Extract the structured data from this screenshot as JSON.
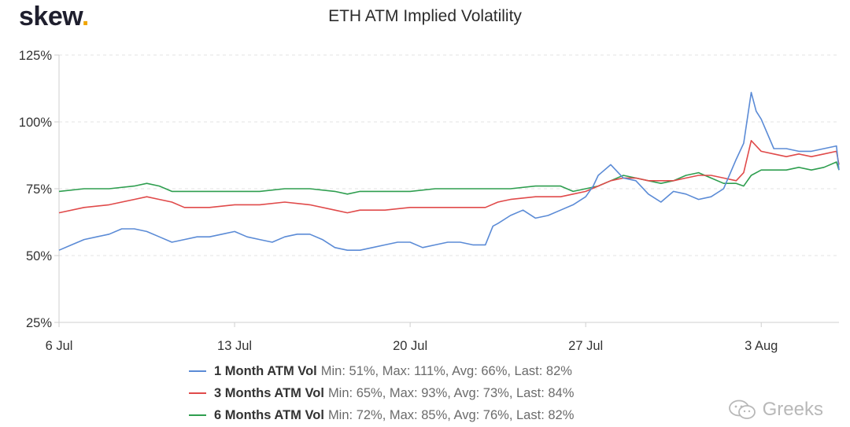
{
  "brand": {
    "name": "skew",
    "dot": "."
  },
  "watermark": {
    "text": "Greeks",
    "icon": "wechat-icon"
  },
  "colors": {
    "series1": "#5b8bd6",
    "series2": "#e04a4a",
    "series3": "#2e9e4f",
    "grid": "#e3e3e3",
    "axis": "#cfcfcf"
  },
  "legend": [
    {
      "name": "1 Month ATM Vol",
      "stats": "Min: 51%, Max: 111%, Avg: 66%, Last: 82%"
    },
    {
      "name": "3 Months ATM Vol",
      "stats": "Min: 65%, Max: 93%, Avg: 73%, Last: 84%"
    },
    {
      "name": "6 Months ATM Vol",
      "stats": "Min: 72%, Max: 85%, Avg: 76%, Last: 82%"
    }
  ],
  "chart_data": {
    "type": "line",
    "title": "ETH ATM Implied Volatility",
    "xlabel": "",
    "ylabel": "",
    "ylim": [
      25,
      125
    ],
    "yticks": [
      "25%",
      "50%",
      "75%",
      "100%",
      "125%"
    ],
    "ytick_values": [
      25,
      50,
      75,
      100,
      125
    ],
    "xlim": [
      0,
      31.1
    ],
    "xticks": [
      "6 Jul",
      "13 Jul",
      "20 Jul",
      "27 Jul",
      "3 Aug"
    ],
    "xtick_values": [
      0,
      7,
      14,
      21,
      28
    ],
    "grid": true,
    "legend_position": "bottom",
    "series": [
      {
        "name": "1 Month ATM Vol",
        "x": [
          0,
          0.5,
          1,
          1.5,
          2,
          2.5,
          3,
          3.5,
          4,
          4.5,
          5,
          5.5,
          6,
          6.5,
          7,
          7.5,
          8,
          8.5,
          9,
          9.5,
          10,
          10.5,
          11,
          11.5,
          12,
          12.5,
          13,
          13.5,
          14,
          14.5,
          15,
          15.5,
          16,
          16.5,
          17,
          17.3,
          17.5,
          18,
          18.5,
          19,
          19.5,
          20,
          20.5,
          21,
          21.3,
          21.5,
          22,
          22.5,
          23,
          23.5,
          24,
          24.5,
          25,
          25.5,
          26,
          26.5,
          27,
          27.3,
          27.6,
          27.8,
          28,
          28.5,
          29,
          29.5,
          30,
          30.5,
          31,
          31.1
        ],
        "y": [
          52,
          54,
          56,
          57,
          58,
          60,
          60,
          59,
          57,
          55,
          56,
          57,
          57,
          58,
          59,
          57,
          56,
          55,
          57,
          58,
          58,
          56,
          53,
          52,
          52,
          53,
          54,
          55,
          55,
          53,
          54,
          55,
          55,
          54,
          54,
          61,
          62,
          65,
          67,
          64,
          65,
          67,
          69,
          72,
          76,
          80,
          84,
          79,
          78,
          73,
          70,
          74,
          73,
          71,
          72,
          75,
          86,
          92,
          111,
          104,
          101,
          90,
          90,
          89,
          89,
          90,
          91,
          82
        ]
      },
      {
        "name": "3 Months ATM Vol",
        "x": [
          0,
          1,
          2,
          3,
          3.5,
          4,
          4.5,
          5,
          6,
          7,
          8,
          9,
          10,
          11,
          11.5,
          12,
          13,
          14,
          15,
          16,
          17,
          17.5,
          18,
          19,
          20,
          20.5,
          21,
          21.5,
          22,
          22.5,
          23,
          23.5,
          24,
          24.5,
          25,
          25.5,
          26,
          26.5,
          27,
          27.3,
          27.6,
          28,
          28.5,
          29,
          29.5,
          30,
          30.5,
          31,
          31.1
        ],
        "y": [
          66,
          68,
          69,
          71,
          72,
          71,
          70,
          68,
          68,
          69,
          69,
          70,
          69,
          67,
          66,
          67,
          67,
          68,
          68,
          68,
          68,
          70,
          71,
          72,
          72,
          73,
          74,
          76,
          78,
          79,
          79,
          78,
          78,
          78,
          79,
          80,
          80,
          79,
          78,
          81,
          93,
          89,
          88,
          87,
          88,
          87,
          88,
          89,
          84
        ]
      },
      {
        "name": "6 Months ATM Vol",
        "x": [
          0,
          1,
          2,
          3,
          3.5,
          4,
          4.5,
          5,
          6,
          7,
          8,
          9,
          10,
          11,
          11.5,
          12,
          13,
          14,
          15,
          16,
          17,
          18,
          19,
          20,
          20.5,
          21,
          21.5,
          22,
          22.5,
          23,
          23.5,
          24,
          24.5,
          25,
          25.5,
          26,
          26.5,
          27,
          27.3,
          27.6,
          28,
          28.5,
          29,
          29.5,
          30,
          30.5,
          31,
          31.1
        ],
        "y": [
          74,
          75,
          75,
          76,
          77,
          76,
          74,
          74,
          74,
          74,
          74,
          75,
          75,
          74,
          73,
          74,
          74,
          74,
          75,
          75,
          75,
          75,
          76,
          76,
          74,
          75,
          76,
          78,
          80,
          79,
          78,
          77,
          78,
          80,
          81,
          79,
          77,
          77,
          76,
          80,
          82,
          82,
          82,
          83,
          82,
          83,
          85,
          82
        ]
      }
    ]
  }
}
